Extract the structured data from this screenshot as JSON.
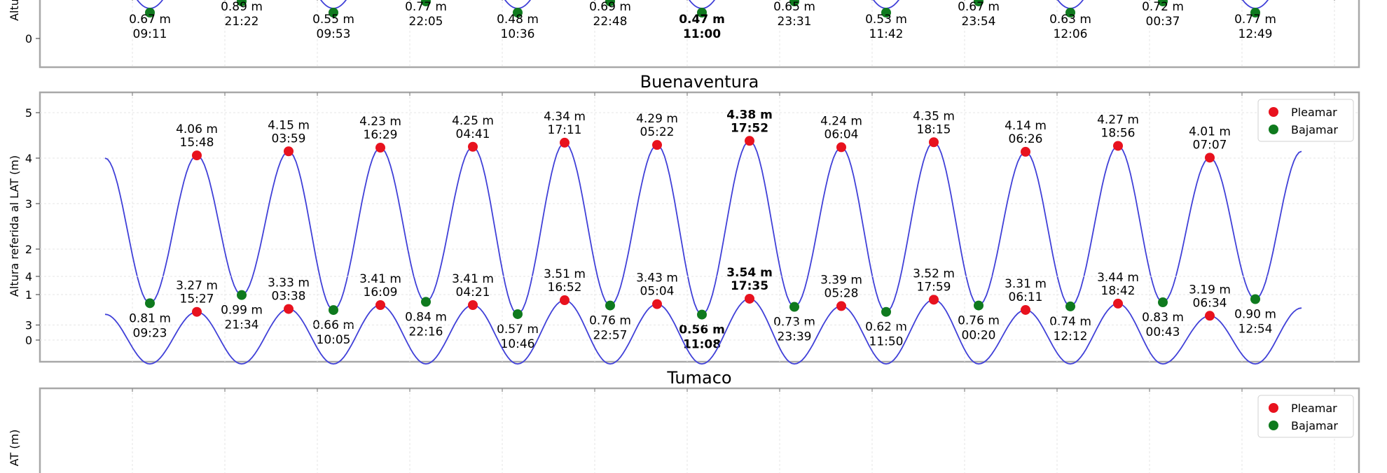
{
  "chart_data": [
    {
      "type": "line",
      "title": "",
      "ylabel": "Altura referida al LAT (m)",
      "ylabel_visible": "Altu",
      "yticks": [
        0
      ],
      "ylim": [
        -0.5,
        1.0
      ],
      "grid": true,
      "legend": false,
      "series": [
        {
          "name": "",
          "color": "#3b3bd6"
        }
      ],
      "highs": [
        {
          "label": "0.89 m",
          "time": "21:22"
        },
        {
          "label": "0.77 m",
          "time": "22:05"
        },
        {
          "label": "0.69 m",
          "time": "22:48"
        },
        {
          "label": "0.65 m",
          "time": "23:31"
        },
        {
          "label": "0.67 m",
          "time": "23:54"
        },
        {
          "label": "0.72 m",
          "time": "00:37"
        }
      ],
      "lows": [
        {
          "label": "0.67 m",
          "time": "09:11"
        },
        {
          "label": "0.55 m",
          "time": "09:53"
        },
        {
          "label": "0.48 m",
          "time": "10:36"
        },
        {
          "label": "0.47 m",
          "time": "11:00",
          "bold": true
        },
        {
          "label": "0.53 m",
          "time": "11:42"
        },
        {
          "label": "0.63 m",
          "time": "12:06"
        },
        {
          "label": "0.77 m",
          "time": "12:49"
        }
      ]
    },
    {
      "type": "line",
      "title": "Buenaventura",
      "ylabel": "Altura referida al LAT (m)",
      "yticks": [
        0,
        1,
        2,
        3,
        4,
        5
      ],
      "ylim": [
        -0.45,
        5.35
      ],
      "grid": true,
      "legend_position": "top-right",
      "legend": [
        {
          "label": "Pleamar",
          "color": "#e8121e"
        },
        {
          "label": "Bajamar",
          "color": "#0f7a1e"
        }
      ],
      "series": [
        {
          "name": "",
          "color": "#3b3bd6"
        }
      ],
      "start_value": 4.0,
      "end_value": 4.15,
      "highs": [
        {
          "value": 4.06,
          "label": "4.06 m",
          "time": "15:48"
        },
        {
          "value": 4.15,
          "label": "4.15 m",
          "time": "03:59"
        },
        {
          "value": 4.23,
          "label": "4.23 m",
          "time": "16:29"
        },
        {
          "value": 4.25,
          "label": "4.25 m",
          "time": "04:41"
        },
        {
          "value": 4.34,
          "label": "4.34 m",
          "time": "17:11"
        },
        {
          "value": 4.29,
          "label": "4.29 m",
          "time": "05:22"
        },
        {
          "value": 4.38,
          "label": "4.38 m",
          "time": "17:52",
          "bold": true
        },
        {
          "value": 4.24,
          "label": "4.24 m",
          "time": "06:04"
        },
        {
          "value": 4.35,
          "label": "4.35 m",
          "time": "18:15"
        },
        {
          "value": 4.14,
          "label": "4.14 m",
          "time": "06:26"
        },
        {
          "value": 4.27,
          "label": "4.27 m",
          "time": "18:56"
        },
        {
          "value": 4.01,
          "label": "4.01 m",
          "time": "07:07"
        }
      ],
      "lows": [
        {
          "value": 0.81,
          "label": "0.81 m",
          "time": "09:23"
        },
        {
          "value": 0.99,
          "label": "0.99 m",
          "time": "21:34"
        },
        {
          "value": 0.66,
          "label": "0.66 m",
          "time": "10:05"
        },
        {
          "value": 0.84,
          "label": "0.84 m",
          "time": "22:16"
        },
        {
          "value": 0.57,
          "label": "0.57 m",
          "time": "10:46"
        },
        {
          "value": 0.76,
          "label": "0.76 m",
          "time": "22:57"
        },
        {
          "value": 0.56,
          "label": "0.56 m",
          "time": "11:08",
          "bold": true
        },
        {
          "value": 0.73,
          "label": "0.73 m",
          "time": "23:39"
        },
        {
          "value": 0.62,
          "label": "0.62 m",
          "time": "11:50"
        },
        {
          "value": 0.76,
          "label": "0.76 m",
          "time": "00:20"
        },
        {
          "value": 0.74,
          "label": "0.74 m",
          "time": "12:12"
        },
        {
          "value": 0.83,
          "label": "0.83 m",
          "time": "00:43"
        },
        {
          "value": 0.9,
          "label": "0.90 m",
          "time": "12:54"
        }
      ]
    },
    {
      "type": "line",
      "title": "Tumaco",
      "ylabel": "Altura referida al LAT (m)",
      "ylabel_visible": "AT (m)",
      "yticks": [
        3,
        4
      ],
      "ylim": [
        2.85,
        4.45
      ],
      "grid": true,
      "legend_position": "top-right",
      "legend": [
        {
          "label": "Pleamar",
          "color": "#e8121e"
        },
        {
          "label": "Bajamar",
          "color": "#0f7a1e"
        }
      ],
      "series": [
        {
          "name": "",
          "color": "#3b3bd6"
        }
      ],
      "start_value": 3.22,
      "end_value": 3.35,
      "highs": [
        {
          "value": 3.27,
          "label": "3.27 m",
          "time": "15:27"
        },
        {
          "value": 3.33,
          "label": "3.33 m",
          "time": "03:38"
        },
        {
          "value": 3.41,
          "label": "3.41 m",
          "time": "16:09"
        },
        {
          "value": 3.41,
          "label": "3.41 m",
          "time": "04:21"
        },
        {
          "value": 3.51,
          "label": "3.51 m",
          "time": "16:52"
        },
        {
          "value": 3.43,
          "label": "3.43 m",
          "time": "05:04"
        },
        {
          "value": 3.54,
          "label": "3.54 m",
          "time": "17:35",
          "bold": true
        },
        {
          "value": 3.39,
          "label": "3.39 m",
          "time": "05:28"
        },
        {
          "value": 3.52,
          "label": "3.52 m",
          "time": "17:59"
        },
        {
          "value": 3.31,
          "label": "3.31 m",
          "time": "06:11"
        },
        {
          "value": 3.44,
          "label": "3.44 m",
          "time": "18:42"
        },
        {
          "value": 3.19,
          "label": "3.19 m",
          "time": "06:34"
        }
      ]
    }
  ]
}
